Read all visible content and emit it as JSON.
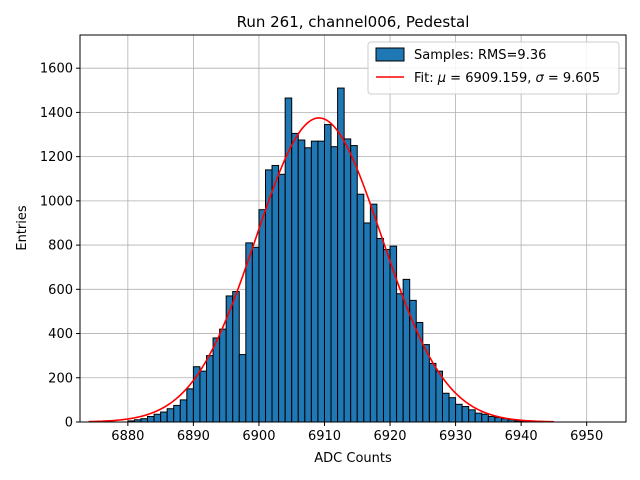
{
  "chart_data": {
    "type": "bar",
    "title": "Run 261, channel006, Pedestal",
    "xlabel": "ADC Counts",
    "ylabel": "Entries",
    "xlim": [
      6872.7,
      6956.0
    ],
    "ylim": [
      0,
      1750
    ],
    "xticks": [
      6880,
      6890,
      6900,
      6910,
      6920,
      6930,
      6940,
      6950
    ],
    "yticks": [
      0,
      200,
      400,
      600,
      800,
      1000,
      1200,
      1400,
      1600
    ],
    "grid": true,
    "legend_position": "top-right",
    "histogram": {
      "name": "Samples: RMS=9.36",
      "bin_start": 6874,
      "bin_width": 1,
      "values": [
        0,
        0,
        0,
        0,
        0,
        0,
        5,
        10,
        15,
        25,
        35,
        45,
        60,
        75,
        100,
        150,
        250,
        230,
        300,
        380,
        420,
        570,
        590,
        305,
        810,
        790,
        960,
        1140,
        1160,
        1120,
        1465,
        1305,
        1275,
        1240,
        1270,
        1270,
        1345,
        1245,
        1510,
        1280,
        1250,
        1030,
        900,
        985,
        830,
        780,
        795,
        580,
        645,
        550,
        450,
        350,
        265,
        230,
        130,
        110,
        80,
        70,
        55,
        40,
        35,
        25,
        20,
        15,
        10,
        5,
        5,
        3,
        2,
        1
      ]
    },
    "fit": {
      "name_prefix": "Fit: ",
      "mu_symbol": "μ",
      "mu_value": " = 6909.159, ",
      "sigma_symbol": "σ",
      "sigma_value": " = 9.605",
      "mu": 6909.159,
      "sigma": 9.605,
      "amplitude": 1375,
      "x_range": [
        6874,
        6945
      ]
    },
    "colors": {
      "bar": "#1f77b4",
      "fit": "#ff0000"
    }
  }
}
